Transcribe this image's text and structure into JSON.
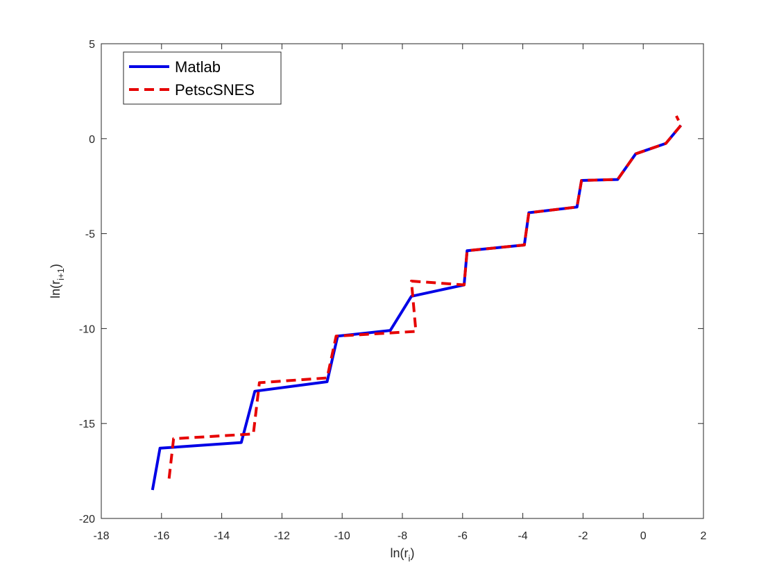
{
  "chart_data": {
    "type": "line",
    "title": "",
    "xlabel": {
      "main": "ln(r",
      "sub": "i",
      "close": ")"
    },
    "ylabel": {
      "main": "ln(r",
      "sub": "i+1",
      "close": ")"
    },
    "xlim": [
      -18,
      2
    ],
    "ylim": [
      -20,
      5
    ],
    "xticks": [
      -18,
      -16,
      -14,
      -12,
      -10,
      -8,
      -6,
      -4,
      -2,
      0,
      2
    ],
    "yticks": [
      -20,
      -15,
      -10,
      -5,
      0,
      5
    ],
    "xtick_labels": [
      "-18",
      "-16",
      "-14",
      "-12",
      "-10",
      "-8",
      "-6",
      "-4",
      "-2",
      "0",
      "2"
    ],
    "ytick_labels": [
      "-20",
      "-15",
      "-10",
      "-5",
      "0",
      "5"
    ],
    "grid": false,
    "legend_position": "top-left",
    "series": [
      {
        "name": "Matlab",
        "color": "#0000e6",
        "style": "solid",
        "x": [
          -16.3,
          -16.05,
          -13.35,
          -12.9,
          -10.5,
          -10.15,
          -8.4,
          -7.7,
          -5.95,
          -5.85,
          -3.95,
          -3.8,
          -2.2,
          -2.05,
          -0.85,
          -0.25,
          0.75,
          1.25
        ],
        "y": [
          -18.5,
          -16.3,
          -16.0,
          -13.3,
          -12.8,
          -10.4,
          -10.1,
          -8.3,
          -7.7,
          -5.9,
          -5.6,
          -3.9,
          -3.6,
          -2.2,
          -2.15,
          -0.8,
          -0.25,
          0.7
        ]
      },
      {
        "name": "PetscSNES",
        "color": "#e60000",
        "style": "dashed",
        "x": [
          -15.75,
          -15.6,
          -12.95,
          -12.75,
          -10.5,
          -10.2,
          -7.55,
          -7.7,
          -5.95,
          -5.85,
          -3.95,
          -3.8,
          -2.2,
          -2.05,
          -0.85,
          -0.25,
          0.75,
          1.25,
          1.1
        ],
        "y": [
          -17.9,
          -15.8,
          -15.55,
          -12.85,
          -12.6,
          -10.4,
          -10.15,
          -7.5,
          -7.7,
          -5.9,
          -5.6,
          -3.9,
          -3.6,
          -2.2,
          -2.15,
          -0.8,
          -0.25,
          0.7,
          1.2
        ]
      }
    ]
  }
}
